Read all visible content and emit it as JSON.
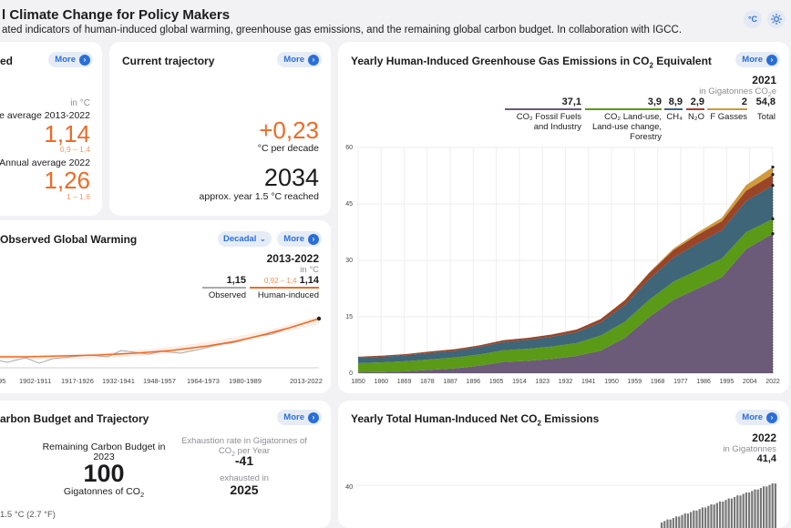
{
  "header": {
    "title": "l Climate Change for Policy Makers",
    "subtitle": "ated indicators of human-induced global warming, greenhouse gas emissions, and the remaining global carbon budget. In collaboration with IGCC.",
    "unit_btn": "°C",
    "theme_icon": "sun-icon"
  },
  "more_label": "More",
  "card_warming": {
    "title": "ed",
    "unit": "in °C",
    "decade_label": "e average 2013-2022",
    "decade_value": "1,14",
    "decade_range": "0,9 – 1,4",
    "annual_label": "Annual average 2022",
    "annual_value": "1,26",
    "annual_range": "1 – 1,6"
  },
  "card_trajectory": {
    "title": "Current trajectory",
    "rate_value": "+0,23",
    "rate_unit": "°C per decade",
    "year_value": "2034",
    "year_label": "approx. year 1.5 °C reached"
  },
  "card_observed": {
    "title": "Observed Global Warming",
    "dropdown": "Decadal",
    "period": "2013-2022",
    "unit": "in °C",
    "observed_value": "1,15",
    "observed_label": "Observed",
    "human_range": "0,92 – 1,4",
    "human_value": "1,14",
    "human_label": "Human-induced",
    "xticks": [
      "95",
      "1902-1911",
      "1917-1926",
      "1932-1941",
      "1948-1957",
      "1964-1973",
      "1980-1989",
      "2013-2022"
    ]
  },
  "card_ghg": {
    "title_pre": "Yearly Human-Induced Greenhouse Gas Emissions in CO",
    "title_sub": "2",
    "title_post": " Equivalent",
    "year": "2021",
    "unit_pre": "in Gigatonnes CO",
    "unit_sub": "2",
    "unit_post": "e",
    "legend": [
      {
        "value": "37,1",
        "label": "CO₂ Fossil Fuels and Industry",
        "color": "#6b5a78"
      },
      {
        "value": "3,9",
        "label": "CO₂ Land-use, Land-use change, Forestry",
        "color": "#5a9a17"
      },
      {
        "value": "8,9",
        "label": "CH₄",
        "color": "#3e6578"
      },
      {
        "value": "2,9",
        "label": "N₂O",
        "color": "#9a4428"
      },
      {
        "value": "2",
        "label": "F Gasses",
        "color": "#d09a3a"
      },
      {
        "value": "54,8",
        "label": "Total",
        "color": ""
      }
    ],
    "chart_data": {
      "type": "area",
      "x": [
        1850,
        1860,
        1870,
        1880,
        1890,
        1900,
        1910,
        1920,
        1930,
        1940,
        1950,
        1960,
        1970,
        1980,
        1990,
        2000,
        2010,
        2021
      ],
      "series": [
        {
          "name": "CO₂ Fossil Fuels and Industry",
          "values": [
            0.2,
            0.3,
            0.5,
            0.9,
            1.3,
            2.0,
            3.0,
            3.3,
            3.8,
            4.6,
            6.0,
            9.4,
            14.9,
            19.5,
            22.5,
            25.5,
            33.0,
            37.1
          ]
        },
        {
          "name": "CO₂ Land-use, Land-use change, Forestry",
          "values": [
            2.5,
            2.6,
            2.7,
            2.8,
            2.9,
            3.0,
            3.1,
            3.2,
            3.3,
            3.4,
            4.0,
            4.3,
            4.6,
            4.8,
            4.9,
            5.0,
            4.5,
            3.9
          ]
        },
        {
          "name": "CH₄",
          "values": [
            1.4,
            1.5,
            1.6,
            1.7,
            1.8,
            2.0,
            2.2,
            2.4,
            2.6,
            2.9,
            3.5,
            4.5,
            5.5,
            6.4,
            7.1,
            7.5,
            8.3,
            8.9
          ]
        },
        {
          "name": "N₂O",
          "values": [
            0.3,
            0.3,
            0.3,
            0.4,
            0.4,
            0.4,
            0.5,
            0.5,
            0.6,
            0.7,
            0.9,
            1.2,
            1.6,
            2.0,
            2.3,
            2.4,
            2.7,
            2.9
          ]
        },
        {
          "name": "F Gasses",
          "values": [
            0,
            0,
            0,
            0,
            0,
            0,
            0,
            0,
            0,
            0,
            0,
            0.1,
            0.2,
            0.4,
            0.6,
            0.9,
            1.5,
            2.0
          ]
        }
      ],
      "xticks": [
        "1850",
        "1860",
        "1869",
        "1878",
        "1887",
        "1896",
        "1905",
        "1914",
        "1923",
        "1932",
        "1941",
        "1950",
        "1959",
        "1968",
        "1977",
        "1986",
        "1995",
        "2004",
        "2022"
      ],
      "yticks": [
        0,
        15,
        30,
        45,
        60
      ],
      "ylim": [
        0,
        60
      ]
    }
  },
  "card_budget": {
    "title": "arbon Budget and Trajectory",
    "remaining_label": "Remaining Carbon Budget in 2023",
    "remaining_value": "100",
    "remaining_unit_pre": "Gigatonnes of CO",
    "remaining_unit_sub": "2",
    "rate_label_pre": "Exhaustion rate in Gigatonnes of CO",
    "rate_label_sub": "2",
    "rate_label_post": " per Year",
    "rate_value": "-41",
    "exhausted_label": "exhausted in",
    "exhausted_value": "2025",
    "footer": "1.5 °C (2.7 °F)"
  },
  "card_netco2": {
    "title_pre": "Yearly Total Human-Induced Net CO",
    "title_sub": "2",
    "title_post": " Emissions",
    "year": "2022",
    "unit": "in Gigatonnes",
    "value": "41,4",
    "ytick": "40"
  }
}
